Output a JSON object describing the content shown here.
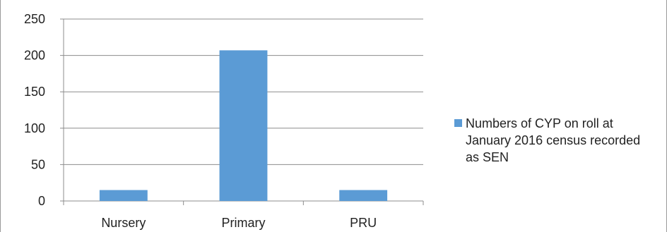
{
  "chart_data": {
    "type": "bar",
    "categories": [
      "Nursery",
      "Primary",
      "PRU"
    ],
    "series": [
      {
        "name": "Numbers of CYP on roll at January 2016 census recorded as SEN",
        "values": [
          15,
          207,
          15
        ],
        "color": "#5b9bd5"
      }
    ],
    "yticks": [
      "0",
      "50",
      "100",
      "150",
      "200",
      "250"
    ],
    "ylim": [
      0,
      250
    ],
    "grid": true,
    "legend_position": "right",
    "title": "",
    "xlabel": "",
    "ylabel": ""
  }
}
